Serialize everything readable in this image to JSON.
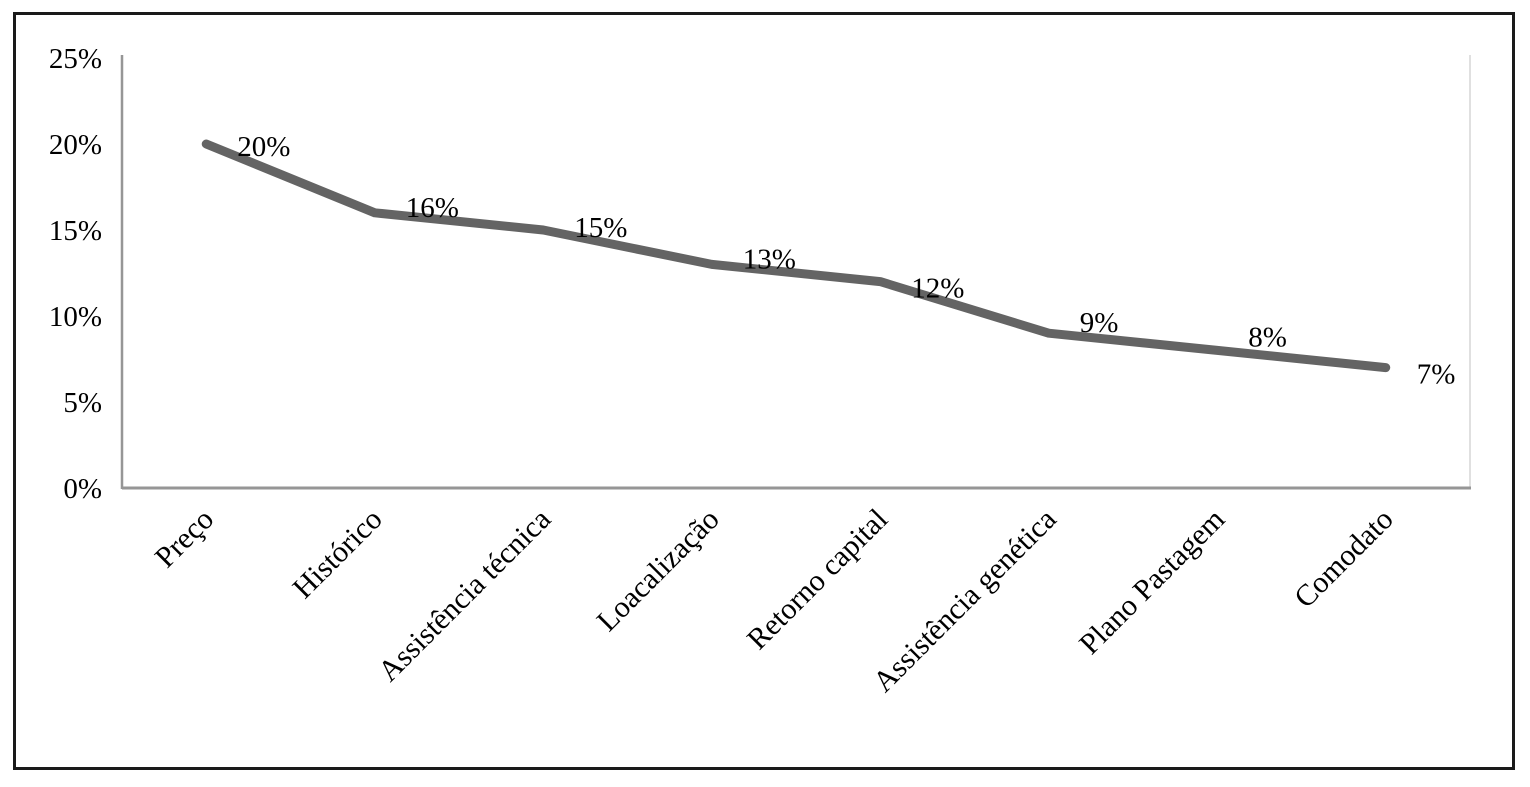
{
  "chart_data": {
    "type": "line",
    "title": "",
    "categories": [
      "Preço",
      "Histórico",
      "Assistência técnica",
      "Loacalização",
      "Retorno capital",
      "Assistência genética",
      "Plano Pastagem",
      "Comodato"
    ],
    "values": [
      20,
      16,
      15,
      13,
      12,
      9,
      8,
      7
    ],
    "data_labels": [
      "20%",
      "16%",
      "15%",
      "13%",
      "12%",
      "9%",
      "8%",
      "7%"
    ],
    "xlabel": "",
    "ylabel": "",
    "ylim": [
      0,
      25
    ],
    "y_tick_values": [
      0,
      5,
      10,
      15,
      20,
      25
    ],
    "y_tick_labels": [
      "0%",
      "5%",
      "10%",
      "15%",
      "20%",
      "25%"
    ],
    "grid": false,
    "legend": "none",
    "series_name": "",
    "colors": {
      "series_line": "#646464",
      "axis_line": "#969696",
      "plot_right_edge": "#e0e0e0",
      "text": "#000000",
      "figure_border": "#1a1a1a",
      "background": "#ffffff"
    }
  }
}
